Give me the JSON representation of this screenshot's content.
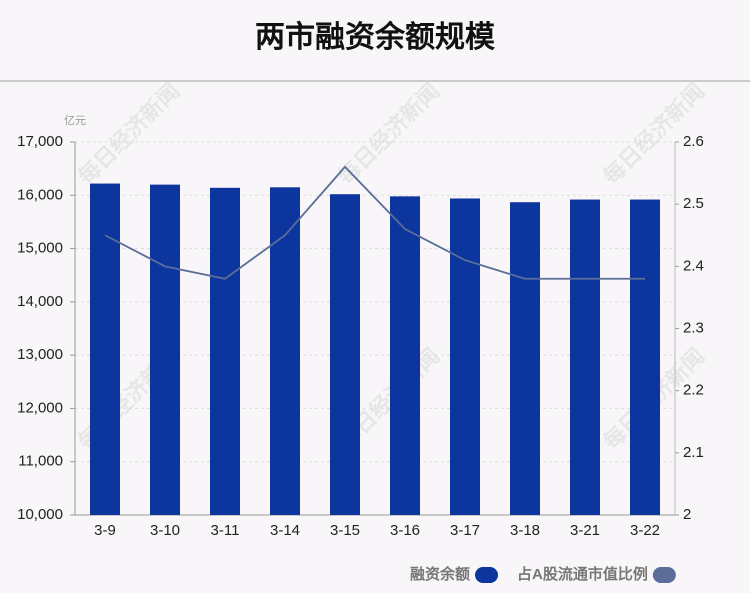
{
  "chart_data": {
    "type": "bar_line",
    "title": "两市融资余额规模",
    "unit": "亿元",
    "watermark": "每日经济新闻",
    "categories": [
      "3-9",
      "3-10",
      "3-11",
      "3-14",
      "3-15",
      "3-16",
      "3-17",
      "3-18",
      "3-21",
      "3-22"
    ],
    "series": [
      {
        "name": "融资余额",
        "color": "#0c359e",
        "type": "bar",
        "values": [
          16220,
          16200,
          16140,
          16150,
          16020,
          15980,
          15940,
          15870,
          15920,
          15920
        ]
      },
      {
        "name": "占A股流通市值比例",
        "color": "#5b6d99",
        "type": "line",
        "axis": "y2",
        "values": [
          2.45,
          2.4,
          2.38,
          2.45,
          2.56,
          2.46,
          2.41,
          2.38,
          2.38,
          2.38
        ]
      }
    ],
    "ylim": [
      10000,
      17000
    ],
    "yticks": [
      {
        "value": 10000,
        "label": "10,000"
      },
      {
        "value": 11000,
        "label": "11,000"
      },
      {
        "value": 12000,
        "label": "12,000"
      },
      {
        "value": 13000,
        "label": "13,000"
      },
      {
        "value": 14000,
        "label": "14,000"
      },
      {
        "value": 15000,
        "label": "15,000"
      },
      {
        "value": 16000,
        "label": "16,000"
      },
      {
        "value": 17000,
        "label": "17,000"
      }
    ],
    "y2lim": [
      2,
      2.6
    ],
    "y2ticks": [
      2,
      2.1,
      2.2,
      2.3,
      2.4,
      2.5,
      2.6
    ],
    "grid": true
  }
}
